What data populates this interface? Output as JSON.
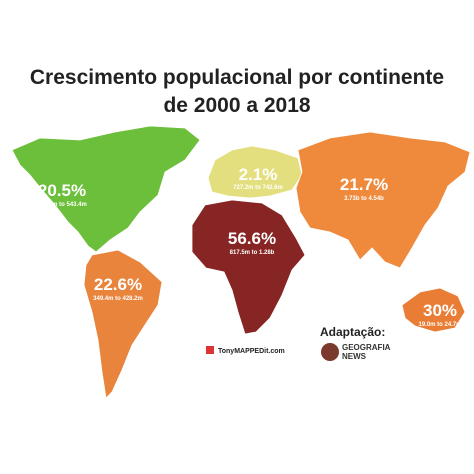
{
  "header": {
    "title_line1": "Crescimento populacional por continente",
    "title_line2": "de 2000 a 2018"
  },
  "regions": [
    {
      "percent": "20.5%",
      "range": "450.8m to 543.4m",
      "color": "#6cbf3a"
    },
    {
      "percent": "22.6%",
      "range": "349.4m to 428.2m",
      "color": "#e9843c"
    },
    {
      "percent": "2.1%",
      "range": "727.2m to 742.6m",
      "color": "#e4df7e"
    },
    {
      "percent": "56.6%",
      "range": "817.5m to 1.28b",
      "color": "#862524"
    },
    {
      "percent": "21.7%",
      "range": "3.73b to 4.54b",
      "color": "#ef8a3d"
    },
    {
      "percent": "30%",
      "range": "19.0m to 24.7m",
      "color": "#ea7d36"
    }
  ],
  "credits": {
    "source": "TonyMAPPEDit.com",
    "adaptation": "Adaptação:",
    "brand1": "GEOGRAFIA",
    "brand2": "NEWS"
  }
}
